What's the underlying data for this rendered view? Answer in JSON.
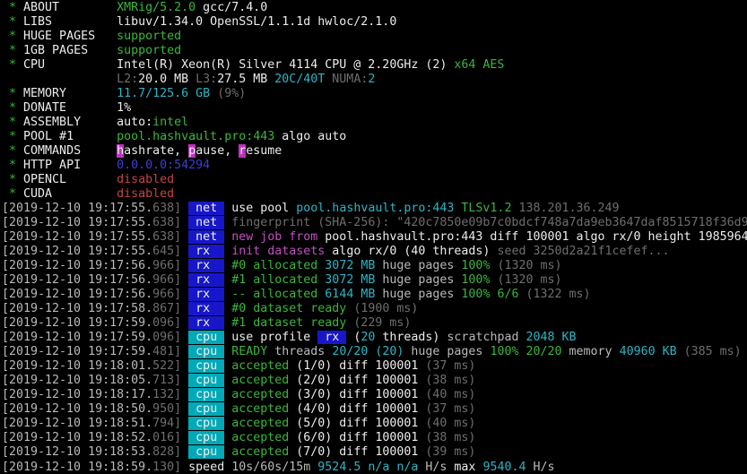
{
  "terminal": {
    "app": "XMRig miner console",
    "palette": {
      "background": "#000000",
      "fg": "#b9b9b9",
      "bold": "#ececec",
      "gray": "#6e6e6e",
      "green": "#3cb53c",
      "cyan": "#2cb5c5",
      "magenta": "#c050c0",
      "red": "#c24545",
      "blue": "#3d3dd3",
      "badgeText": "#f0f0f0",
      "blueBg": "#1717c9",
      "cyanBg": "#00a9b7",
      "magentaBg": "#c030c0"
    },
    "lines": [
      {
        "n": "about-line",
        "s": [
          [
            " * ",
            "green"
          ],
          [
            "ABOUT        ",
            "bold"
          ],
          [
            "XMRig/5.2.0",
            "green"
          ],
          [
            " gcc/7.4.0",
            "bold"
          ]
        ]
      },
      {
        "n": "libs-line",
        "s": [
          [
            " * ",
            "green"
          ],
          [
            "LIBS         ",
            "bold"
          ],
          [
            "libuv/1.34.0 OpenSSL/1.1.1d hwloc/2.1.0",
            "bold"
          ]
        ]
      },
      {
        "n": "huge-pages-line",
        "s": [
          [
            " * ",
            "green"
          ],
          [
            "HUGE PAGES   ",
            "bold"
          ],
          [
            "supported",
            "green"
          ]
        ]
      },
      {
        "n": "1gb-pages-line",
        "s": [
          [
            " * ",
            "green"
          ],
          [
            "1GB PAGES    ",
            "bold"
          ],
          [
            "supported",
            "green"
          ]
        ]
      },
      {
        "n": "cpu-line",
        "s": [
          [
            " * ",
            "green"
          ],
          [
            "CPU          ",
            "bold"
          ],
          [
            "Intel(R) Xeon(R) Silver 4114 CPU @ 2.20GHz (2) ",
            "bold"
          ],
          [
            "x64 AES",
            "green"
          ]
        ]
      },
      {
        "n": "cpu-cache-line",
        "s": [
          [
            "                ",
            "fg"
          ],
          [
            "L2:",
            "gray"
          ],
          [
            "20.0 MB ",
            "bold"
          ],
          [
            "L3:",
            "gray"
          ],
          [
            "27.5 MB ",
            "bold"
          ],
          [
            "20C/40T ",
            "cyan"
          ],
          [
            "NUMA:",
            "gray"
          ],
          [
            "2",
            "cyan"
          ]
        ]
      },
      {
        "n": "memory-line",
        "s": [
          [
            " * ",
            "green"
          ],
          [
            "MEMORY       ",
            "bold"
          ],
          [
            "11.7/125.6 GB ",
            "cyan"
          ],
          [
            "(9%)",
            "gray"
          ]
        ]
      },
      {
        "n": "donate-line",
        "s": [
          [
            " * ",
            "green"
          ],
          [
            "DONATE       ",
            "bold"
          ],
          [
            "1%",
            "bold"
          ]
        ]
      },
      {
        "n": "assembly-line",
        "s": [
          [
            " * ",
            "green"
          ],
          [
            "ASSEMBLY     ",
            "bold"
          ],
          [
            "auto:",
            "bold"
          ],
          [
            "intel",
            "green"
          ]
        ]
      },
      {
        "n": "pool-line",
        "s": [
          [
            " * ",
            "green"
          ],
          [
            "POOL #1      ",
            "bold"
          ],
          [
            "pool.hashvault.pro:443",
            "green"
          ],
          [
            " algo auto",
            "bold"
          ]
        ]
      },
      {
        "n": "commands-line",
        "s": [
          [
            " * ",
            "green"
          ],
          [
            "COMMANDS     ",
            "bold"
          ],
          [
            "h",
            "badgeText",
            "magentaBg",
            "hotkey-hashrate"
          ],
          [
            "ashrate, ",
            "bold"
          ],
          [
            "p",
            "badgeText",
            "magentaBg",
            "hotkey-pause"
          ],
          [
            "ause, ",
            "bold"
          ],
          [
            "r",
            "badgeText",
            "magentaBg",
            "hotkey-resume"
          ],
          [
            "esume",
            "bold"
          ]
        ]
      },
      {
        "n": "http-api-line",
        "s": [
          [
            " * ",
            "green"
          ],
          [
            "HTTP API     ",
            "bold"
          ],
          [
            "0.0.0.0:54294",
            "blue"
          ]
        ]
      },
      {
        "n": "opencl-line",
        "s": [
          [
            " * ",
            "green"
          ],
          [
            "OPENCL       ",
            "bold"
          ],
          [
            "disabled",
            "red"
          ]
        ]
      },
      {
        "n": "cuda-line",
        "s": [
          [
            " * ",
            "green"
          ],
          [
            "CUDA         ",
            "bold"
          ],
          [
            "disabled",
            "red"
          ]
        ]
      },
      {
        "n": "log-line",
        "s": [
          [
            "[2019-12-10 19:17:55.",
            "fg"
          ],
          [
            "638]",
            "gray"
          ],
          [
            " ",
            "fg"
          ],
          [
            " net ",
            "badgeText",
            "blueBg",
            "net-tag"
          ],
          [
            " ",
            "fg"
          ],
          [
            "use pool ",
            "bold"
          ],
          [
            "pool.hashvault.pro:443 ",
            "cyan"
          ],
          [
            "TLSv1.2 ",
            "green"
          ],
          [
            "138.201.36.249",
            "gray"
          ]
        ]
      },
      {
        "n": "log-line",
        "s": [
          [
            "[2019-12-10 19:17:55.",
            "fg"
          ],
          [
            "638]",
            "gray"
          ],
          [
            " ",
            "fg"
          ],
          [
            " net ",
            "badgeText",
            "blueBg",
            "net-tag"
          ],
          [
            " ",
            "fg"
          ],
          [
            "fingerprint (SHA-256): \"420c7850e09b7c0bdcf748a7da9eb3647daf8515718f36d9e",
            "gray"
          ]
        ]
      },
      {
        "n": "log-line",
        "s": [
          [
            "[2019-12-10 19:17:55.",
            "fg"
          ],
          [
            "638]",
            "gray"
          ],
          [
            " ",
            "fg"
          ],
          [
            " net ",
            "badgeText",
            "blueBg",
            "net-tag"
          ],
          [
            " ",
            "fg"
          ],
          [
            "new job from ",
            "magenta"
          ],
          [
            "pool.hashvault.pro:443 diff 100001 algo rx/0 height 1985964",
            "bold"
          ]
        ]
      },
      {
        "n": "log-line",
        "s": [
          [
            "[2019-12-10 19:17:55.",
            "fg"
          ],
          [
            "645]",
            "gray"
          ],
          [
            " ",
            "fg"
          ],
          [
            " rx  ",
            "badgeText",
            "blueBg",
            "rx-tag"
          ],
          [
            " ",
            "fg"
          ],
          [
            "init datasets",
            "magenta"
          ],
          [
            " algo rx/0 (40 threads) ",
            "bold"
          ],
          [
            "seed 3250d2a21f1cefef...",
            "gray"
          ]
        ]
      },
      {
        "n": "log-line",
        "s": [
          [
            "[2019-12-10 19:17:56.",
            "fg"
          ],
          [
            "966]",
            "gray"
          ],
          [
            " ",
            "fg"
          ],
          [
            " rx  ",
            "badgeText",
            "blueBg",
            "rx-tag"
          ],
          [
            " ",
            "fg"
          ],
          [
            "#0 allocated",
            "green"
          ],
          [
            " 3072 MB ",
            "cyan"
          ],
          [
            "huge pages ",
            "fg"
          ],
          [
            "100% ",
            "green"
          ],
          [
            "(1320 ms)",
            "gray"
          ]
        ]
      },
      {
        "n": "log-line",
        "s": [
          [
            "[2019-12-10 19:17:56.",
            "fg"
          ],
          [
            "966]",
            "gray"
          ],
          [
            " ",
            "fg"
          ],
          [
            " rx  ",
            "badgeText",
            "blueBg",
            "rx-tag"
          ],
          [
            " ",
            "fg"
          ],
          [
            "#1 allocated",
            "green"
          ],
          [
            " 3072 MB ",
            "cyan"
          ],
          [
            "huge pages ",
            "fg"
          ],
          [
            "100% ",
            "green"
          ],
          [
            "(1320 ms)",
            "gray"
          ]
        ]
      },
      {
        "n": "log-line",
        "s": [
          [
            "[2019-12-10 19:17:56.",
            "fg"
          ],
          [
            "966]",
            "gray"
          ],
          [
            " ",
            "fg"
          ],
          [
            " rx  ",
            "badgeText",
            "blueBg",
            "rx-tag"
          ],
          [
            " ",
            "fg"
          ],
          [
            "-- allocated",
            "green"
          ],
          [
            " 6144 MB ",
            "cyan"
          ],
          [
            "huge pages ",
            "fg"
          ],
          [
            "100% 6/6 ",
            "green"
          ],
          [
            "(1322 ms)",
            "gray"
          ]
        ]
      },
      {
        "n": "log-line",
        "s": [
          [
            "[2019-12-10 19:17:58.",
            "fg"
          ],
          [
            "867]",
            "gray"
          ],
          [
            " ",
            "fg"
          ],
          [
            " rx  ",
            "badgeText",
            "blueBg",
            "rx-tag"
          ],
          [
            " ",
            "fg"
          ],
          [
            "#0 dataset ready ",
            "green"
          ],
          [
            "(1900 ms)",
            "gray"
          ]
        ]
      },
      {
        "n": "log-line",
        "s": [
          [
            "[2019-12-10 19:17:59.",
            "fg"
          ],
          [
            "096]",
            "gray"
          ],
          [
            " ",
            "fg"
          ],
          [
            " rx  ",
            "badgeText",
            "blueBg",
            "rx-tag"
          ],
          [
            " ",
            "fg"
          ],
          [
            "#1 dataset ready ",
            "green"
          ],
          [
            "(229 ms)",
            "gray"
          ]
        ]
      },
      {
        "n": "log-line",
        "s": [
          [
            "[2019-12-10 19:17:59.",
            "fg"
          ],
          [
            "096]",
            "gray"
          ],
          [
            " ",
            "fg"
          ],
          [
            " cpu ",
            "badgeText",
            "cyanBg",
            "cpu-tag"
          ],
          [
            " ",
            "fg"
          ],
          [
            "use profile ",
            "bold"
          ],
          [
            " rx ",
            "badgeText",
            "blueBg",
            "rx-profile-tag"
          ],
          [
            " (",
            "bold"
          ],
          [
            "20",
            "cyan"
          ],
          [
            " threads) ",
            "bold"
          ],
          [
            "scratchpad ",
            "fg"
          ],
          [
            "2048 KB",
            "cyan"
          ]
        ]
      },
      {
        "n": "log-line",
        "s": [
          [
            "[2019-12-10 19:17:59.",
            "fg"
          ],
          [
            "481]",
            "gray"
          ],
          [
            " ",
            "fg"
          ],
          [
            " cpu ",
            "badgeText",
            "cyanBg",
            "cpu-tag"
          ],
          [
            " ",
            "fg"
          ],
          [
            "READY",
            "green"
          ],
          [
            " threads ",
            "fg"
          ],
          [
            "20/20 (20)",
            "cyan"
          ],
          [
            " huge pages ",
            "fg"
          ],
          [
            "100% 20/20",
            "green"
          ],
          [
            " memory ",
            "fg"
          ],
          [
            "40960 KB",
            "cyan"
          ],
          [
            " (385 ms)",
            "gray"
          ]
        ]
      },
      {
        "n": "log-line",
        "s": [
          [
            "[2019-12-10 19:18:01.",
            "fg"
          ],
          [
            "522]",
            "gray"
          ],
          [
            " ",
            "fg"
          ],
          [
            " cpu ",
            "badgeText",
            "cyanBg",
            "cpu-tag"
          ],
          [
            " ",
            "fg"
          ],
          [
            "accepted",
            "green"
          ],
          [
            " (1/0) diff 100001 ",
            "bold"
          ],
          [
            "(37 ms)",
            "gray"
          ]
        ]
      },
      {
        "n": "log-line",
        "s": [
          [
            "[2019-12-10 19:18:05.",
            "fg"
          ],
          [
            "713]",
            "gray"
          ],
          [
            " ",
            "fg"
          ],
          [
            " cpu ",
            "badgeText",
            "cyanBg",
            "cpu-tag"
          ],
          [
            " ",
            "fg"
          ],
          [
            "accepted",
            "green"
          ],
          [
            " (2/0) diff 100001 ",
            "bold"
          ],
          [
            "(38 ms)",
            "gray"
          ]
        ]
      },
      {
        "n": "log-line",
        "s": [
          [
            "[2019-12-10 19:18:17.",
            "fg"
          ],
          [
            "132]",
            "gray"
          ],
          [
            " ",
            "fg"
          ],
          [
            " cpu ",
            "badgeText",
            "cyanBg",
            "cpu-tag"
          ],
          [
            " ",
            "fg"
          ],
          [
            "accepted",
            "green"
          ],
          [
            " (3/0) diff 100001 ",
            "bold"
          ],
          [
            "(40 ms)",
            "gray"
          ]
        ]
      },
      {
        "n": "log-line",
        "s": [
          [
            "[2019-12-10 19:18:50.",
            "fg"
          ],
          [
            "950]",
            "gray"
          ],
          [
            " ",
            "fg"
          ],
          [
            " cpu ",
            "badgeText",
            "cyanBg",
            "cpu-tag"
          ],
          [
            " ",
            "fg"
          ],
          [
            "accepted",
            "green"
          ],
          [
            " (4/0) diff 100001 ",
            "bold"
          ],
          [
            "(37 ms)",
            "gray"
          ]
        ]
      },
      {
        "n": "log-line",
        "s": [
          [
            "[2019-12-10 19:18:51.",
            "fg"
          ],
          [
            "794]",
            "gray"
          ],
          [
            " ",
            "fg"
          ],
          [
            " cpu ",
            "badgeText",
            "cyanBg",
            "cpu-tag"
          ],
          [
            " ",
            "fg"
          ],
          [
            "accepted",
            "green"
          ],
          [
            " (5/0) diff 100001 ",
            "bold"
          ],
          [
            "(40 ms)",
            "gray"
          ]
        ]
      },
      {
        "n": "log-line",
        "s": [
          [
            "[2019-12-10 19:18:52.",
            "fg"
          ],
          [
            "016]",
            "gray"
          ],
          [
            " ",
            "fg"
          ],
          [
            " cpu ",
            "badgeText",
            "cyanBg",
            "cpu-tag"
          ],
          [
            " ",
            "fg"
          ],
          [
            "accepted",
            "green"
          ],
          [
            " (6/0) diff 100001 ",
            "bold"
          ],
          [
            "(38 ms)",
            "gray"
          ]
        ]
      },
      {
        "n": "log-line",
        "s": [
          [
            "[2019-12-10 19:18:53.",
            "fg"
          ],
          [
            "828]",
            "gray"
          ],
          [
            " ",
            "fg"
          ],
          [
            " cpu ",
            "badgeText",
            "cyanBg",
            "cpu-tag"
          ],
          [
            " ",
            "fg"
          ],
          [
            "accepted",
            "green"
          ],
          [
            " (7/0) diff 100001 ",
            "bold"
          ],
          [
            "(39 ms)",
            "gray"
          ]
        ]
      },
      {
        "n": "speed-line",
        "s": [
          [
            "[2019-12-10 19:18:59.",
            "fg"
          ],
          [
            "130]",
            "gray"
          ],
          [
            " ",
            "fg"
          ],
          [
            "speed ",
            "bold"
          ],
          [
            "10s/60s/15m ",
            "fg"
          ],
          [
            "9524.5 n/a n/a ",
            "cyan"
          ],
          [
            "H/s ",
            "fg"
          ],
          [
            "max ",
            "bold"
          ],
          [
            "9540.4 ",
            "cyan"
          ],
          [
            "H/s",
            "fg"
          ]
        ]
      }
    ]
  }
}
